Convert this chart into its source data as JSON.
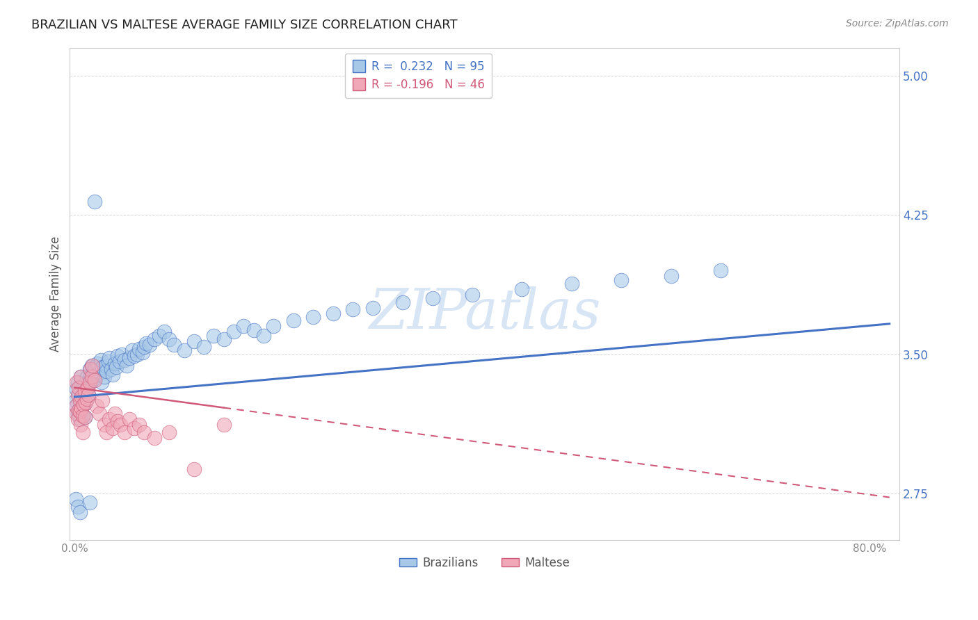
{
  "title": "BRAZILIAN VS MALTESE AVERAGE FAMILY SIZE CORRELATION CHART",
  "source": "Source: ZipAtlas.com",
  "ylabel": "Average Family Size",
  "watermark": "ZIPatlas",
  "ylim": [
    2.5,
    5.15
  ],
  "xlim": [
    -0.005,
    0.83
  ],
  "yticks": [
    2.75,
    3.5,
    4.25,
    5.0
  ],
  "xticks": [
    0.0,
    0.1,
    0.2,
    0.3,
    0.4,
    0.5,
    0.6,
    0.7,
    0.8
  ],
  "xtick_labels": [
    "0.0%",
    "",
    "",
    "",
    "",
    "",
    "",
    "",
    "80.0%"
  ],
  "brazil_color": "#A8C8E8",
  "maltese_color": "#F0A8B8",
  "brazil_R": 0.232,
  "brazil_N": 95,
  "maltese_R": -0.196,
  "maltese_N": 46,
  "brazil_line_color": "#4472C4",
  "maltese_line_color": "#D05878",
  "title_fontsize": 13,
  "tick_color": "#4472C4",
  "brazil_line_intercept": 3.27,
  "brazil_line_slope": 0.48,
  "maltese_line_intercept": 3.32,
  "maltese_line_slope": -0.72,
  "brazil_scatter_x": [
    0.001,
    0.002,
    0.002,
    0.003,
    0.003,
    0.004,
    0.004,
    0.005,
    0.005,
    0.006,
    0.006,
    0.007,
    0.007,
    0.008,
    0.008,
    0.009,
    0.009,
    0.01,
    0.01,
    0.011,
    0.011,
    0.012,
    0.012,
    0.013,
    0.014,
    0.015,
    0.015,
    0.016,
    0.017,
    0.018,
    0.019,
    0.02,
    0.021,
    0.022,
    0.023,
    0.025,
    0.026,
    0.027,
    0.028,
    0.03,
    0.031,
    0.032,
    0.034,
    0.035,
    0.037,
    0.038,
    0.04,
    0.042,
    0.043,
    0.045,
    0.047,
    0.05,
    0.052,
    0.055,
    0.058,
    0.06,
    0.063,
    0.065,
    0.068,
    0.07,
    0.072,
    0.075,
    0.08,
    0.085,
    0.09,
    0.095,
    0.1,
    0.11,
    0.12,
    0.13,
    0.14,
    0.15,
    0.16,
    0.17,
    0.18,
    0.19,
    0.2,
    0.22,
    0.24,
    0.26,
    0.28,
    0.3,
    0.33,
    0.36,
    0.4,
    0.45,
    0.5,
    0.55,
    0.6,
    0.65,
    0.001,
    0.003,
    0.005,
    0.015,
    0.02
  ],
  "brazil_scatter_y": [
    3.25,
    3.22,
    3.31,
    3.18,
    3.35,
    3.2,
    3.28,
    3.15,
    3.32,
    3.19,
    3.38,
    3.21,
    3.27,
    3.17,
    3.33,
    3.23,
    3.29,
    3.16,
    3.34,
    3.24,
    3.3,
    3.26,
    3.38,
    3.32,
    3.28,
    3.35,
    3.42,
    3.38,
    3.44,
    3.36,
    3.41,
    3.37,
    3.43,
    3.39,
    3.45,
    3.4,
    3.47,
    3.35,
    3.43,
    3.38,
    3.44,
    3.41,
    3.46,
    3.48,
    3.42,
    3.39,
    3.45,
    3.43,
    3.49,
    3.46,
    3.5,
    3.47,
    3.44,
    3.48,
    3.52,
    3.49,
    3.5,
    3.53,
    3.51,
    3.54,
    3.56,
    3.55,
    3.58,
    3.6,
    3.62,
    3.58,
    3.55,
    3.52,
    3.57,
    3.54,
    3.6,
    3.58,
    3.62,
    3.65,
    3.63,
    3.6,
    3.65,
    3.68,
    3.7,
    3.72,
    3.74,
    3.75,
    3.78,
    3.8,
    3.82,
    3.85,
    3.88,
    3.9,
    3.92,
    3.95,
    2.72,
    2.68,
    2.65,
    2.7,
    4.32
  ],
  "maltese_scatter_x": [
    0.001,
    0.002,
    0.002,
    0.003,
    0.003,
    0.004,
    0.004,
    0.005,
    0.005,
    0.006,
    0.006,
    0.007,
    0.007,
    0.008,
    0.008,
    0.009,
    0.01,
    0.01,
    0.011,
    0.012,
    0.013,
    0.014,
    0.015,
    0.016,
    0.017,
    0.018,
    0.02,
    0.022,
    0.025,
    0.028,
    0.03,
    0.032,
    0.035,
    0.038,
    0.04,
    0.043,
    0.046,
    0.05,
    0.055,
    0.06,
    0.065,
    0.07,
    0.08,
    0.095,
    0.12,
    0.15
  ],
  "maltese_scatter_y": [
    3.22,
    3.18,
    3.35,
    3.15,
    3.28,
    3.2,
    3.32,
    3.25,
    3.19,
    3.12,
    3.38,
    3.21,
    3.27,
    3.17,
    3.08,
    3.23,
    3.16,
    3.3,
    3.24,
    3.26,
    3.32,
    3.28,
    3.35,
    3.42,
    3.38,
    3.44,
    3.36,
    3.22,
    3.18,
    3.25,
    3.12,
    3.08,
    3.15,
    3.1,
    3.18,
    3.14,
    3.12,
    3.08,
    3.15,
    3.1,
    3.12,
    3.08,
    3.05,
    3.08,
    2.88,
    3.12
  ]
}
